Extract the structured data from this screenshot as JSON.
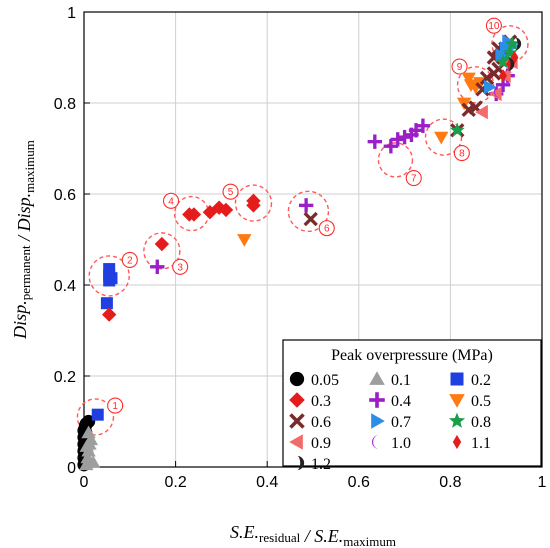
{
  "chart_data": {
    "type": "scatter",
    "xlim": [
      0,
      1
    ],
    "ylim": [
      0,
      1
    ],
    "x_ticks": [
      "0",
      "0.2",
      "0.4",
      "0.6",
      "0.8",
      "1"
    ],
    "y_ticks": [
      "0",
      "0.2",
      "0.4",
      "0.6",
      "0.8",
      "1"
    ],
    "grid": true,
    "xlabel": {
      "main": "S.E.",
      "sub": "residual",
      "sep": " / ",
      "main2": "S.E.",
      "sub2": "maximum"
    },
    "ylabel": {
      "main": "Disp.",
      "sub": "permanent",
      "sep": " / ",
      "main2": "Disp.",
      "sub2": "maximum"
    },
    "legend": {
      "title": "Peak overpressure (MPa)",
      "placement": "bottom-right"
    },
    "series": [
      {
        "name": "0.05",
        "marker": "circle",
        "color": "#000000",
        "points": [
          [
            0,
            0.005
          ],
          [
            0,
            0.02
          ],
          [
            0,
            0.035
          ],
          [
            0,
            0.05
          ],
          [
            0,
            0.065
          ],
          [
            0,
            0.08
          ],
          [
            0.003,
            0.09
          ],
          [
            0.005,
            0.095
          ],
          [
            0.01,
            0.1
          ],
          [
            0.002,
            0.04
          ],
          [
            0.004,
            0.075
          ]
        ]
      },
      {
        "name": "0.1",
        "marker": "triangle-up",
        "color": "#9e9e9e",
        "points": [
          [
            0.005,
            0.005
          ],
          [
            0.008,
            0.02
          ],
          [
            0.01,
            0.035
          ],
          [
            0.012,
            0.05
          ],
          [
            0.015,
            0.06
          ],
          [
            0.01,
            0.075
          ],
          [
            0.02,
            0.01
          ],
          [
            0.006,
            0.045
          ]
        ]
      },
      {
        "name": "0.2",
        "marker": "square",
        "color": "#1f3fe0",
        "points": [
          [
            0.03,
            0.115
          ],
          [
            0.05,
            0.36
          ],
          [
            0.055,
            0.41
          ],
          [
            0.055,
            0.42
          ],
          [
            0.055,
            0.435
          ],
          [
            0.06,
            0.415
          ]
        ]
      },
      {
        "name": "0.3",
        "marker": "diamond",
        "color": "#e51c1c",
        "points": [
          [
            0.055,
            0.335
          ],
          [
            0.17,
            0.49
          ],
          [
            0.23,
            0.555
          ],
          [
            0.24,
            0.555
          ],
          [
            0.275,
            0.56
          ],
          [
            0.295,
            0.57
          ],
          [
            0.31,
            0.565
          ],
          [
            0.37,
            0.575
          ],
          [
            0.37,
            0.585
          ]
        ]
      },
      {
        "name": "0.4",
        "marker": "plus",
        "color": "#9b1fc7",
        "points": [
          [
            0.16,
            0.44
          ],
          [
            0.485,
            0.575
          ],
          [
            0.635,
            0.715
          ],
          [
            0.67,
            0.705
          ],
          [
            0.685,
            0.72
          ],
          [
            0.7,
            0.725
          ],
          [
            0.715,
            0.73
          ],
          [
            0.725,
            0.74
          ],
          [
            0.74,
            0.75
          ],
          [
            0.9,
            0.82
          ],
          [
            0.915,
            0.84
          ],
          [
            0.925,
            0.86
          ]
        ]
      },
      {
        "name": "0.5",
        "marker": "triangle-down",
        "color": "#ff7a12",
        "points": [
          [
            0.35,
            0.5
          ],
          [
            0.78,
            0.725
          ],
          [
            0.83,
            0.8
          ],
          [
            0.84,
            0.855
          ],
          [
            0.845,
            0.84
          ],
          [
            0.855,
            0.835
          ],
          [
            0.865,
            0.845
          ]
        ]
      },
      {
        "name": "0.6",
        "marker": "x",
        "color": "#7a2b2b",
        "points": [
          [
            0.495,
            0.545
          ],
          [
            0.815,
            0.74
          ],
          [
            0.84,
            0.785
          ],
          [
            0.855,
            0.79
          ],
          [
            0.87,
            0.83
          ],
          [
            0.88,
            0.855
          ],
          [
            0.895,
            0.865
          ],
          [
            0.905,
            0.875
          ],
          [
            0.915,
            0.9
          ],
          [
            0.92,
            0.92
          ],
          [
            0.93,
            0.935
          ],
          [
            0.905,
            0.92
          ],
          [
            0.895,
            0.9
          ]
        ]
      },
      {
        "name": "0.7",
        "marker": "triangle-right",
        "color": "#2b8fe8",
        "points": [
          [
            0.885,
            0.835
          ],
          [
            0.91,
            0.905
          ],
          [
            0.92,
            0.92
          ],
          [
            0.925,
            0.935
          ],
          [
            0.935,
            0.925
          ]
        ]
      },
      {
        "name": "0.8",
        "marker": "star",
        "color": "#1a9e4a",
        "points": [
          [
            0.815,
            0.74
          ],
          [
            0.915,
            0.89
          ],
          [
            0.925,
            0.895
          ],
          [
            0.93,
            0.91
          ],
          [
            0.935,
            0.93
          ]
        ]
      },
      {
        "name": "0.9",
        "marker": "triangle-left",
        "color": "#f26a6a",
        "points": [
          [
            0.87,
            0.78
          ],
          [
            0.9,
            0.82
          ],
          [
            0.92,
            0.86
          ],
          [
            0.935,
            0.89
          ]
        ]
      },
      {
        "name": "1.0",
        "marker": "crescent",
        "color": "#a12bd6",
        "points": [
          [
            0.905,
            0.825
          ],
          [
            0.925,
            0.86
          ],
          [
            0.935,
            0.88
          ]
        ]
      },
      {
        "name": "1.1",
        "marker": "small-diamond",
        "color": "#e51c1c",
        "points": [
          [
            0.915,
            0.86
          ],
          [
            0.93,
            0.885
          ],
          [
            0.94,
            0.9
          ]
        ]
      },
      {
        "name": "1.2",
        "marker": "half-circle",
        "color": "#222222",
        "points": [
          [
            0.925,
            0.885
          ],
          [
            0.94,
            0.93
          ]
        ]
      }
    ],
    "annotations": [
      {
        "label": "1",
        "x": 0.025,
        "y": 0.11,
        "r": 18,
        "lx": 0.068,
        "ly": 0.135
      },
      {
        "label": "2",
        "x": 0.055,
        "y": 0.42,
        "r": 20,
        "lx": 0.1,
        "ly": 0.455
      },
      {
        "label": "3",
        "x": 0.17,
        "y": 0.475,
        "r": 18,
        "lx": 0.21,
        "ly": 0.44
      },
      {
        "label": "4",
        "x": 0.235,
        "y": 0.557,
        "r": 17,
        "lx": 0.19,
        "ly": 0.585
      },
      {
        "label": "5",
        "x": 0.37,
        "y": 0.58,
        "r": 18,
        "lx": 0.32,
        "ly": 0.605
      },
      {
        "label": "6",
        "x": 0.49,
        "y": 0.562,
        "r": 20,
        "lx": 0.53,
        "ly": 0.525
      },
      {
        "label": "7",
        "x": 0.68,
        "y": 0.675,
        "r": 17,
        "lx": 0.72,
        "ly": 0.635
      },
      {
        "label": "8",
        "x": 0.785,
        "y": 0.725,
        "r": 18,
        "lx": 0.825,
        "ly": 0.69
      },
      {
        "label": "9",
        "x": 0.855,
        "y": 0.84,
        "r": 18,
        "lx": 0.82,
        "ly": 0.88
      },
      {
        "label": "10",
        "x": 0.93,
        "y": 0.93,
        "r": 18,
        "lx": 0.895,
        "ly": 0.97
      }
    ]
  }
}
